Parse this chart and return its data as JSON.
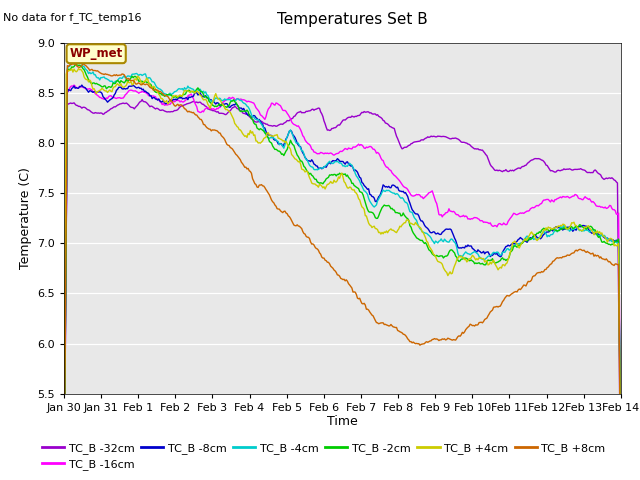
{
  "title": "Temperatures Set B",
  "subtitle": "No data for f_TC_temp16",
  "ylabel": "Temperature (C)",
  "xlabel": "Time",
  "ylim": [
    5.5,
    9.0
  ],
  "series": [
    {
      "label": "TC_B -32cm",
      "color": "#9900cc"
    },
    {
      "label": "TC_B -16cm",
      "color": "#ff00ff"
    },
    {
      "label": "TC_B -8cm",
      "color": "#0000cc"
    },
    {
      "label": "TC_B -4cm",
      "color": "#00cccc"
    },
    {
      "label": "TC_B -2cm",
      "color": "#00cc00"
    },
    {
      "label": "TC_B +4cm",
      "color": "#cccc00"
    },
    {
      "label": "TC_B +8cm",
      "color": "#cc6600"
    }
  ],
  "wp_met_label": "WP_met",
  "xtick_labels": [
    "Jan 30",
    "Jan 31",
    "Feb 1",
    "Feb 2",
    "Feb 3",
    "Feb 4",
    "Feb 5",
    "Feb 6",
    "Feb 7",
    "Feb 8",
    "Feb 9",
    "Feb 10",
    "Feb 11",
    "Feb 12",
    "Feb 13",
    "Feb 14"
  ],
  "n_points": 500
}
